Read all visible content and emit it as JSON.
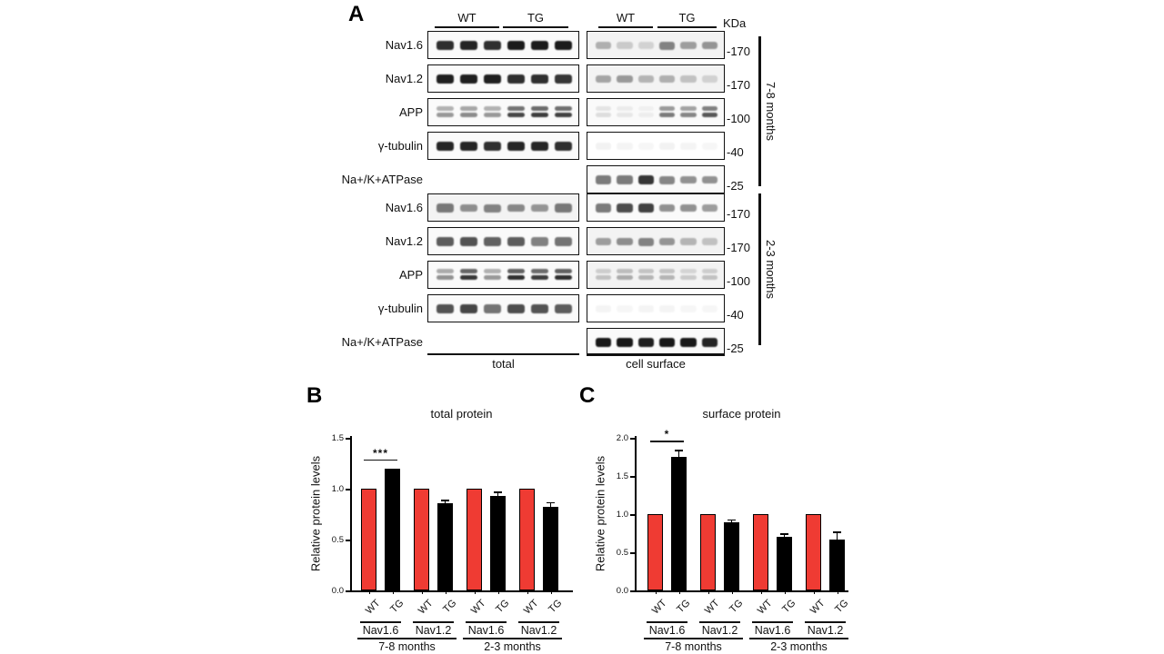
{
  "panelA": {
    "label": "A",
    "kda_label": "KDa",
    "lane_headers": [
      "WT",
      "TG",
      "WT",
      "TG"
    ],
    "condition_labels": [
      "total",
      "cell surface"
    ],
    "sections": [
      {
        "age_label": "7-8 months",
        "rows": [
          {
            "label": "Nav1.6",
            "mw": "-170",
            "double": false,
            "total": [
              0.88,
              0.92,
              0.88,
              0.97,
              0.97,
              0.97
            ],
            "surface": [
              0.3,
              0.18,
              0.14,
              0.5,
              0.38,
              0.42
            ]
          },
          {
            "label": "Nav1.2",
            "mw": "-170",
            "double": false,
            "total": [
              0.95,
              0.95,
              0.95,
              0.88,
              0.88,
              0.85
            ],
            "surface": [
              0.35,
              0.4,
              0.28,
              0.3,
              0.22,
              0.15
            ]
          },
          {
            "label": "APP",
            "mw": "-100",
            "double": true,
            "total": [
              0.42,
              0.48,
              0.42,
              0.78,
              0.82,
              0.8
            ],
            "surface": [
              0.12,
              0.08,
              0.05,
              0.55,
              0.5,
              0.7
            ]
          },
          {
            "label": "γ-tubulin",
            "mw": "-40",
            "double": false,
            "total": [
              0.92,
              0.92,
              0.88,
              0.92,
              0.92,
              0.88
            ],
            "surface": [
              0.05,
              0.04,
              0.03,
              0.05,
              0.04,
              0.03
            ]
          },
          {
            "label": "Na+/K+ATPase",
            "mw": "-25",
            "double": false,
            "total": null,
            "surface": [
              0.55,
              0.55,
              0.85,
              0.5,
              0.45,
              0.45
            ]
          }
        ]
      },
      {
        "age_label": "2-3 months",
        "rows": [
          {
            "label": "Nav1.6",
            "mw": "-170",
            "double": false,
            "total": [
              0.55,
              0.45,
              0.5,
              0.48,
              0.42,
              0.55
            ],
            "surface": [
              0.55,
              0.75,
              0.8,
              0.45,
              0.45,
              0.4
            ]
          },
          {
            "label": "Nav1.2",
            "mw": "-170",
            "double": false,
            "total": [
              0.68,
              0.72,
              0.66,
              0.68,
              0.52,
              0.58
            ],
            "surface": [
              0.38,
              0.45,
              0.5,
              0.42,
              0.28,
              0.22
            ]
          },
          {
            "label": "APP",
            "mw": "-100",
            "double": true,
            "total": [
              0.45,
              0.85,
              0.42,
              0.88,
              0.82,
              0.88
            ],
            "surface": [
              0.22,
              0.32,
              0.28,
              0.28,
              0.18,
              0.22
            ]
          },
          {
            "label": "γ-tubulin",
            "mw": "-40",
            "double": false,
            "total": [
              0.72,
              0.78,
              0.58,
              0.75,
              0.72,
              0.68
            ],
            "surface": [
              0.04,
              0.03,
              0.04,
              0.04,
              0.03,
              0.03
            ]
          },
          {
            "label": "Na+/K+ATPase",
            "mw": "-25",
            "double": false,
            "total": null,
            "surface": [
              0.98,
              0.98,
              0.95,
              0.98,
              0.98,
              0.92
            ]
          }
        ]
      }
    ]
  },
  "chart_data": [
    {
      "type": "bar",
      "panel_label": "B",
      "title": "total protein",
      "ylabel": "Relative protein levels",
      "ylim": [
        0,
        1.5
      ],
      "ytick_labels": [
        "0.0",
        "0.5",
        "1.0",
        "1.5"
      ],
      "grid": false,
      "legend": "none",
      "bar_colors": {
        "WT": "#ef3b33",
        "TG": "#000000"
      },
      "categories": [
        "Nav1.6",
        "Nav1.2",
        "Nav1.6",
        "Nav1.2"
      ],
      "age_groups": [
        {
          "label": "7-8 months",
          "groups": [
            0,
            1
          ]
        },
        {
          "label": "2-3 months",
          "groups": [
            2,
            3
          ]
        }
      ],
      "series": [
        {
          "name": "WT",
          "values": [
            1.0,
            1.0,
            1.0,
            1.0
          ],
          "errors": [
            0,
            0,
            0,
            0
          ]
        },
        {
          "name": "TG",
          "values": [
            1.2,
            0.86,
            0.93,
            0.82
          ],
          "errors": [
            0,
            0.03,
            0.04,
            0.05
          ]
        }
      ],
      "significance": [
        {
          "group": 0,
          "label": "***"
        }
      ]
    },
    {
      "type": "bar",
      "panel_label": "C",
      "title": "surface protein",
      "ylabel": "Relative protein levels",
      "ylim": [
        0,
        2.0
      ],
      "ytick_labels": [
        "0.0",
        "0.5",
        "1.0",
        "1.5",
        "2.0"
      ],
      "grid": false,
      "legend": "none",
      "bar_colors": {
        "WT": "#ef3b33",
        "TG": "#000000"
      },
      "categories": [
        "Nav1.6",
        "Nav1.2",
        "Nav1.6",
        "Nav1.2"
      ],
      "age_groups": [
        {
          "label": "7-8 months",
          "groups": [
            0,
            1
          ]
        },
        {
          "label": "2-3 months",
          "groups": [
            2,
            3
          ]
        }
      ],
      "series": [
        {
          "name": "WT",
          "values": [
            1.0,
            1.0,
            1.0,
            1.0
          ],
          "errors": [
            0,
            0,
            0,
            0
          ]
        },
        {
          "name": "TG",
          "values": [
            1.75,
            0.89,
            0.7,
            0.67
          ],
          "errors": [
            0.09,
            0.04,
            0.05,
            0.1
          ]
        }
      ],
      "significance": [
        {
          "group": 0,
          "label": "*"
        }
      ]
    }
  ]
}
